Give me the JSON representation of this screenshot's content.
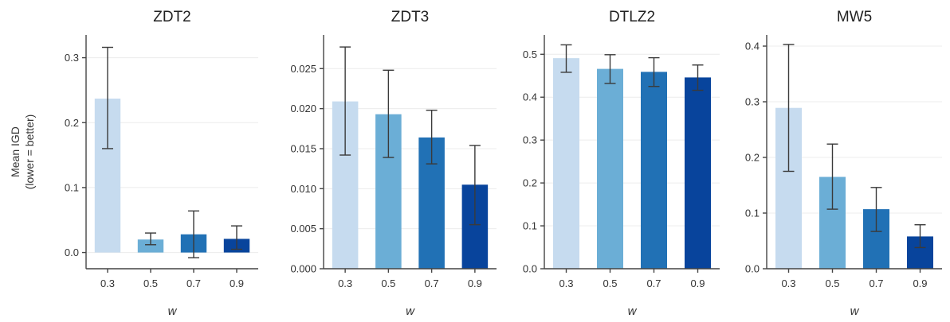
{
  "colors": [
    "#c6dbef",
    "#6baed6",
    "#2171b5",
    "#08449c"
  ],
  "chart_data": [
    {
      "type": "bar",
      "title": "ZDT2",
      "xlabel": "w",
      "ylabel": "Mean IGD",
      "ylabel_sub": "(lower = better)",
      "categories": [
        "0.3",
        "0.5",
        "0.7",
        "0.9"
      ],
      "values": [
        0.237,
        0.02,
        0.028,
        0.021
      ],
      "error_low": [
        0.16,
        0.012,
        -0.008,
        0.005
      ],
      "error_high": [
        0.316,
        0.03,
        0.064,
        0.041
      ],
      "ylim": [
        -0.025,
        0.335
      ],
      "yticks": [
        0.0,
        0.1,
        0.2,
        0.3
      ],
      "ytick_labels": [
        "0.0",
        "0.1",
        "0.2",
        "0.3"
      ],
      "grid": true
    },
    {
      "type": "bar",
      "title": "ZDT3",
      "xlabel": "w",
      "ylabel": "",
      "ylabel_sub": "",
      "categories": [
        "0.3",
        "0.5",
        "0.7",
        "0.9"
      ],
      "values": [
        0.0209,
        0.0193,
        0.0164,
        0.0105
      ],
      "error_low": [
        0.0142,
        0.0139,
        0.0131,
        0.0055
      ],
      "error_high": [
        0.0277,
        0.0248,
        0.0198,
        0.0154
      ],
      "ylim": [
        0.0,
        0.0292
      ],
      "yticks": [
        0.0,
        0.005,
        0.01,
        0.015,
        0.02,
        0.025
      ],
      "ytick_labels": [
        "0.000",
        "0.005",
        "0.010",
        "0.015",
        "0.020",
        "0.025"
      ],
      "grid": true
    },
    {
      "type": "bar",
      "title": "DTLZ2",
      "xlabel": "w",
      "ylabel": "",
      "ylabel_sub": "",
      "categories": [
        "0.3",
        "0.5",
        "0.7",
        "0.9"
      ],
      "values": [
        0.491,
        0.466,
        0.459,
        0.446
      ],
      "error_low": [
        0.458,
        0.432,
        0.425,
        0.416
      ],
      "error_high": [
        0.522,
        0.499,
        0.492,
        0.475
      ],
      "ylim": [
        0.0,
        0.545
      ],
      "yticks": [
        0.0,
        0.1,
        0.2,
        0.3,
        0.4,
        0.5
      ],
      "ytick_labels": [
        "0.0",
        "0.1",
        "0.2",
        "0.3",
        "0.4",
        "0.5"
      ],
      "grid": true
    },
    {
      "type": "bar",
      "title": "MW5",
      "xlabel": "w",
      "ylabel": "",
      "ylabel_sub": "",
      "categories": [
        "0.3",
        "0.5",
        "0.7",
        "0.9"
      ],
      "values": [
        0.289,
        0.165,
        0.107,
        0.058
      ],
      "error_low": [
        0.175,
        0.107,
        0.067,
        0.038
      ],
      "error_high": [
        0.403,
        0.224,
        0.146,
        0.079
      ],
      "ylim": [
        0.0,
        0.42
      ],
      "yticks": [
        0.0,
        0.1,
        0.2,
        0.3,
        0.4
      ],
      "ytick_labels": [
        "0.0",
        "0.1",
        "0.2",
        "0.3",
        "0.4"
      ],
      "grid": true
    }
  ]
}
